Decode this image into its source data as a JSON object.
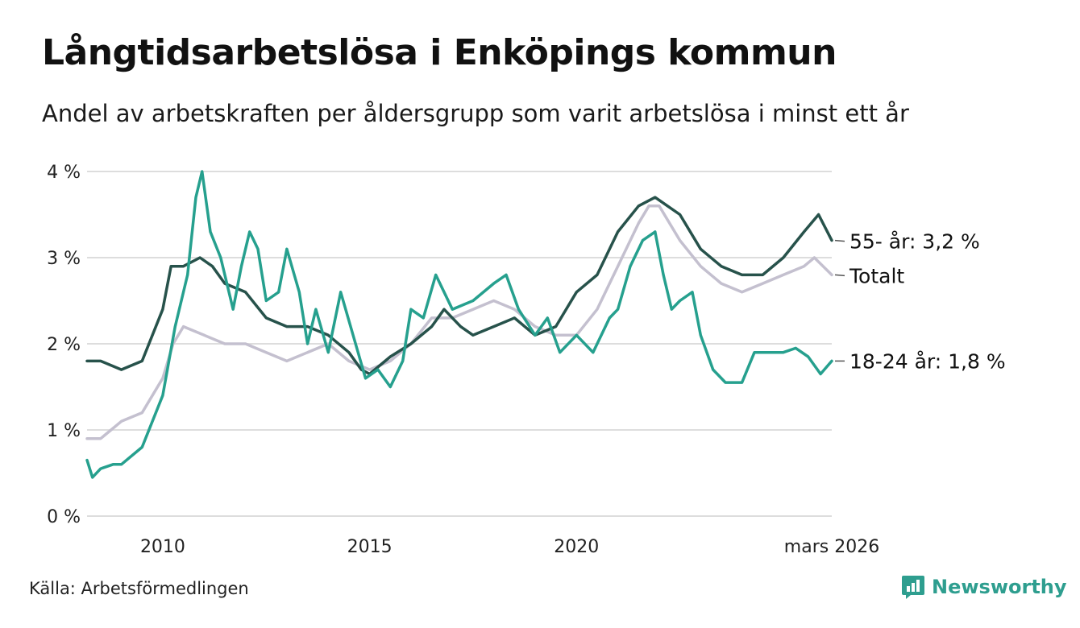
{
  "title": "Långtidsarbetslösa i Enköpings kommun",
  "subtitle": "Andel av arbetskraften per åldersgrupp som varit arbetslösa i minst ett år",
  "source": "Källa: Arbetsförmedlingen",
  "brand": {
    "name": "Newsworthy",
    "icon": "newsworthy-logo-icon",
    "color": "#2e9e8f"
  },
  "chart_data": {
    "type": "line",
    "x_range": [
      2008.17,
      2026.17
    ],
    "ylim": [
      0,
      4
    ],
    "y_ticks": [
      {
        "value": 0,
        "label": "0 %"
      },
      {
        "value": 1,
        "label": "1 %"
      },
      {
        "value": 2,
        "label": "2 %"
      },
      {
        "value": 3,
        "label": "3 %"
      },
      {
        "value": 4,
        "label": "4 %"
      }
    ],
    "x_ticks": [
      {
        "value": 2010,
        "label": "2010"
      },
      {
        "value": 2015,
        "label": "2015"
      },
      {
        "value": 2020,
        "label": "2020"
      },
      {
        "value": 2026.17,
        "label": "mars 2026"
      }
    ],
    "grid": true,
    "series": [
      {
        "name": "Totalt",
        "end_label": "Totalt",
        "color": "#c4c0cf",
        "points": [
          [
            2008.17,
            0.9
          ],
          [
            2008.5,
            0.9
          ],
          [
            2008.75,
            1.0
          ],
          [
            2009.0,
            1.1
          ],
          [
            2009.5,
            1.2
          ],
          [
            2010.0,
            1.6
          ],
          [
            2010.25,
            2.0
          ],
          [
            2010.5,
            2.2
          ],
          [
            2011.0,
            2.1
          ],
          [
            2011.5,
            2.0
          ],
          [
            2012.0,
            2.0
          ],
          [
            2012.5,
            1.9
          ],
          [
            2013.0,
            1.8
          ],
          [
            2013.5,
            1.9
          ],
          [
            2014.0,
            2.0
          ],
          [
            2014.5,
            1.8
          ],
          [
            2015.0,
            1.7
          ],
          [
            2015.5,
            1.8
          ],
          [
            2016.0,
            2.0
          ],
          [
            2016.5,
            2.3
          ],
          [
            2017.0,
            2.3
          ],
          [
            2017.5,
            2.4
          ],
          [
            2018.0,
            2.5
          ],
          [
            2018.5,
            2.4
          ],
          [
            2019.0,
            2.2
          ],
          [
            2019.5,
            2.1
          ],
          [
            2020.0,
            2.1
          ],
          [
            2020.5,
            2.4
          ],
          [
            2021.0,
            2.9
          ],
          [
            2021.5,
            3.4
          ],
          [
            2021.75,
            3.6
          ],
          [
            2022.0,
            3.6
          ],
          [
            2022.5,
            3.2
          ],
          [
            2023.0,
            2.9
          ],
          [
            2023.5,
            2.7
          ],
          [
            2024.0,
            2.6
          ],
          [
            2024.5,
            2.7
          ],
          [
            2025.0,
            2.8
          ],
          [
            2025.5,
            2.9
          ],
          [
            2025.75,
            3.0
          ],
          [
            2026.17,
            2.8
          ]
        ]
      },
      {
        "name": "55- år",
        "end_label": "55- år: 3,2 %",
        "color": "#27524b",
        "points": [
          [
            2008.17,
            1.8
          ],
          [
            2008.5,
            1.8
          ],
          [
            2009.0,
            1.7
          ],
          [
            2009.5,
            1.8
          ],
          [
            2010.0,
            2.4
          ],
          [
            2010.2,
            2.9
          ],
          [
            2010.5,
            2.9
          ],
          [
            2010.9,
            3.0
          ],
          [
            2011.2,
            2.9
          ],
          [
            2011.5,
            2.7
          ],
          [
            2012.0,
            2.6
          ],
          [
            2012.5,
            2.3
          ],
          [
            2013.0,
            2.2
          ],
          [
            2013.5,
            2.2
          ],
          [
            2014.0,
            2.1
          ],
          [
            2014.5,
            1.9
          ],
          [
            2014.8,
            1.7
          ],
          [
            2015.0,
            1.65
          ],
          [
            2015.5,
            1.85
          ],
          [
            2016.0,
            2.0
          ],
          [
            2016.5,
            2.2
          ],
          [
            2016.8,
            2.4
          ],
          [
            2017.2,
            2.2
          ],
          [
            2017.5,
            2.1
          ],
          [
            2018.0,
            2.2
          ],
          [
            2018.5,
            2.3
          ],
          [
            2019.0,
            2.1
          ],
          [
            2019.5,
            2.2
          ],
          [
            2020.0,
            2.6
          ],
          [
            2020.5,
            2.8
          ],
          [
            2021.0,
            3.3
          ],
          [
            2021.5,
            3.6
          ],
          [
            2021.9,
            3.7
          ],
          [
            2022.2,
            3.6
          ],
          [
            2022.5,
            3.5
          ],
          [
            2023.0,
            3.1
          ],
          [
            2023.5,
            2.9
          ],
          [
            2024.0,
            2.8
          ],
          [
            2024.5,
            2.8
          ],
          [
            2025.0,
            3.0
          ],
          [
            2025.5,
            3.3
          ],
          [
            2025.85,
            3.5
          ],
          [
            2026.17,
            3.2
          ]
        ]
      },
      {
        "name": "18-24 år",
        "end_label": "18-24 år: 1,8 %",
        "color": "#26a08e",
        "points": [
          [
            2008.17,
            0.65
          ],
          [
            2008.3,
            0.45
          ],
          [
            2008.5,
            0.55
          ],
          [
            2008.8,
            0.6
          ],
          [
            2009.0,
            0.6
          ],
          [
            2009.5,
            0.8
          ],
          [
            2010.0,
            1.4
          ],
          [
            2010.3,
            2.2
          ],
          [
            2010.6,
            2.8
          ],
          [
            2010.8,
            3.7
          ],
          [
            2010.95,
            4.0
          ],
          [
            2011.15,
            3.3
          ],
          [
            2011.4,
            3.0
          ],
          [
            2011.7,
            2.4
          ],
          [
            2011.9,
            2.9
          ],
          [
            2012.1,
            3.3
          ],
          [
            2012.3,
            3.1
          ],
          [
            2012.5,
            2.5
          ],
          [
            2012.8,
            2.6
          ],
          [
            2013.0,
            3.1
          ],
          [
            2013.3,
            2.6
          ],
          [
            2013.5,
            2.0
          ],
          [
            2013.7,
            2.4
          ],
          [
            2014.0,
            1.9
          ],
          [
            2014.3,
            2.6
          ],
          [
            2014.6,
            2.1
          ],
          [
            2014.9,
            1.6
          ],
          [
            2015.2,
            1.7
          ],
          [
            2015.5,
            1.5
          ],
          [
            2015.8,
            1.8
          ],
          [
            2016.0,
            2.4
          ],
          [
            2016.3,
            2.3
          ],
          [
            2016.6,
            2.8
          ],
          [
            2017.0,
            2.4
          ],
          [
            2017.5,
            2.5
          ],
          [
            2018.0,
            2.7
          ],
          [
            2018.3,
            2.8
          ],
          [
            2018.6,
            2.4
          ],
          [
            2019.0,
            2.1
          ],
          [
            2019.3,
            2.3
          ],
          [
            2019.6,
            1.9
          ],
          [
            2020.0,
            2.1
          ],
          [
            2020.4,
            1.9
          ],
          [
            2020.8,
            2.3
          ],
          [
            2021.0,
            2.4
          ],
          [
            2021.3,
            2.9
          ],
          [
            2021.6,
            3.2
          ],
          [
            2021.9,
            3.3
          ],
          [
            2022.1,
            2.8
          ],
          [
            2022.3,
            2.4
          ],
          [
            2022.5,
            2.5
          ],
          [
            2022.8,
            2.6
          ],
          [
            2023.0,
            2.1
          ],
          [
            2023.3,
            1.7
          ],
          [
            2023.6,
            1.55
          ],
          [
            2024.0,
            1.55
          ],
          [
            2024.3,
            1.9
          ],
          [
            2024.6,
            1.9
          ],
          [
            2025.0,
            1.9
          ],
          [
            2025.3,
            1.95
          ],
          [
            2025.6,
            1.85
          ],
          [
            2025.9,
            1.65
          ],
          [
            2026.17,
            1.8
          ]
        ]
      }
    ]
  }
}
